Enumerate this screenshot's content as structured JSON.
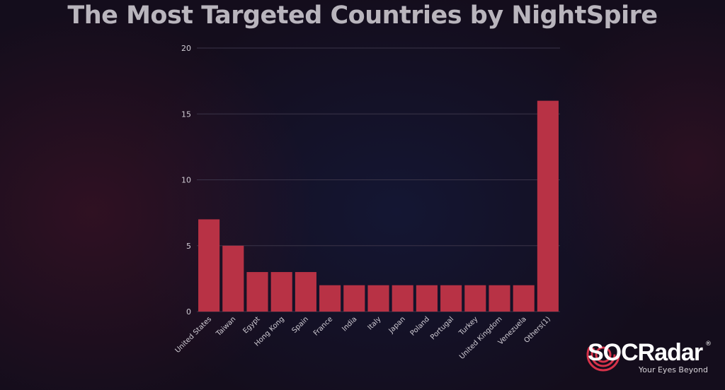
{
  "chart_data": {
    "type": "bar",
    "title": "The Most Targeted Countries by NightSpire",
    "xlabel": "",
    "ylabel": "",
    "categories": [
      "United States",
      "Taiwan",
      "Egypt",
      "Hong Kong",
      "Spain",
      "France",
      "India",
      "Italy",
      "Japan",
      "Poland",
      "Portugal",
      "Turkey",
      "United Kingdom",
      "Venezuela",
      "Others(1)"
    ],
    "values": [
      7,
      5,
      3,
      3,
      3,
      2,
      2,
      2,
      2,
      2,
      2,
      2,
      2,
      2,
      16
    ],
    "ylim": [
      0,
      20
    ],
    "yticks": [
      0,
      5,
      10,
      15,
      20
    ],
    "grid": true,
    "bar_color": "#b83245"
  },
  "branding": {
    "name": "SOCRadar",
    "registered": "®",
    "tagline": "Your Eyes Beyond",
    "ring_color": "#d6324a"
  }
}
